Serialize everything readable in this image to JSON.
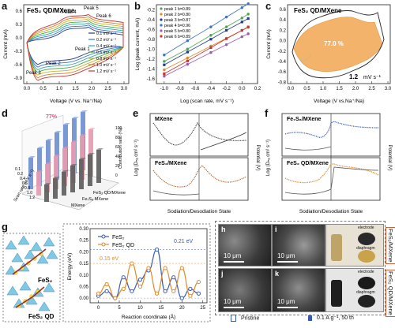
{
  "panels": {
    "a": {
      "label": "a",
      "title": "FeS₂ QD/MXene",
      "xlabel": "Voltage (V vs. Na⁺/Na)",
      "ylabel": "Current (mA)",
      "xticks": [
        "0.0",
        "0.5",
        "1.0",
        "1.5",
        "2.0",
        "2.5",
        "3.0"
      ],
      "yticks": [
        "0.6",
        "0.3",
        "0.0",
        "-0.3",
        "-0.6",
        "-0.9"
      ],
      "peaks": [
        "Peak 1",
        "Peak 2",
        "Peak 3",
        "Peak 4",
        "Peak 5",
        "Peak 6"
      ],
      "legend": [
        "0.1 mV s⁻¹",
        "0.2 mV s⁻¹",
        "0.4 mV s⁻¹",
        "0.6 mV s⁻¹",
        "0.8 mV s⁻¹",
        "1.0 mV s⁻¹",
        "1.2 mV s⁻¹"
      ],
      "colors": [
        "#1f3c8c",
        "#3a73c8",
        "#2aa7a7",
        "#4aa84a",
        "#c8b428",
        "#d27a28",
        "#c83232"
      ]
    },
    "b": {
      "label": "b",
      "xlabel": "Log (scan rate, mV s⁻¹)",
      "ylabel": "Log (peak current, mA)",
      "xticks": [
        "-1.0",
        "-0.8",
        "-0.6",
        "-0.4",
        "-0.2",
        "0.0",
        "0.2"
      ],
      "yticks": [
        "-0.2",
        "-0.4",
        "-0.6",
        "-0.8",
        "-1.0",
        "-1.2",
        "-1.4",
        "-1.6"
      ],
      "legend": [
        "peak 1 b=0.89",
        "peak 2 b=0.80",
        "peak 3 b=0.87",
        "peak 4 b=0.96",
        "peak 5 b=0.80",
        "peak 6 b=0.89"
      ]
    },
    "c": {
      "label": "c",
      "title": "FeS₂ QD/MXene",
      "percent": "77.0 %",
      "rate": "1.2",
      "rate_unit": "mV s⁻¹",
      "xlabel": "Voltage (V vs.Na⁺/Na)",
      "ylabel": "Current (mA)",
      "xticks": [
        "0.0",
        "0.5",
        "1.0",
        "1.5",
        "2.0",
        "2.5",
        "3.0"
      ],
      "yticks": [
        "0.6",
        "0.4",
        "0.2",
        "0.0",
        "-0.2",
        "-0.4",
        "-0.6",
        "-0.8"
      ]
    },
    "d": {
      "label": "d",
      "percent": "77%",
      "axis_z": "Contribution ratio (%)",
      "axis_x": "Scan rate (mV s⁻¹)",
      "rows": [
        "FeS₂ QD/MXene",
        "Fe₇S₈ MXene",
        "MXene"
      ],
      "zticks": [
        "100",
        "80",
        "60",
        "40",
        "20",
        "0"
      ],
      "xticks": [
        "0.1",
        "0.2",
        "0.4",
        "0.6",
        "0.8",
        "1.0",
        "1.2"
      ]
    },
    "e": {
      "label": "e",
      "top": "MXene",
      "bottom": "FeS₂/MXene",
      "xlabel": "Sodiation/Desodiation State",
      "ylabel": "Log (Dₙₐ cm² s⁻¹)",
      "y2label": "Potential (V)"
    },
    "f": {
      "label": "f",
      "top": "Fe₇S₈/MXene",
      "bottom": "FeS₂ QD/MXene",
      "xlabel": "Sodiation/Desodiation State",
      "ylabel": "Log (Dₙₐ cm² s⁻¹)",
      "y2label": "Potential (V)"
    },
    "g": {
      "label": "g",
      "struct_top": "FeS₂",
      "struct_bottom": "FeS₂ QD",
      "xlabel": "Reaction coordinate (Å)",
      "ylabel": "Energy (eV)",
      "xticks": [
        "0",
        "5",
        "10",
        "15",
        "20",
        "25"
      ],
      "yticks": [
        "0.30",
        "0.25",
        "0.20",
        "0.15",
        "0.10",
        "0.05",
        "0.00"
      ],
      "legend": [
        "FeS₂",
        "FeS₂ QD"
      ],
      "ann_high": "0.21 eV",
      "ann_low": "0.15 eV"
    },
    "sem": {
      "h": "h",
      "i": "i",
      "j": "j",
      "k": "k",
      "scale": "10 μm",
      "electrode": "electrode",
      "diaphragm": "diaphragm",
      "side_top": "FeS₂/MXene",
      "side_bottom": "FeS₂ QD/MXene",
      "pristine": "Pristine",
      "cycled": "0.1 A g⁻¹, 50 th"
    }
  },
  "chart_data": [
    {
      "type": "line",
      "panel": "b",
      "x": [
        -1.0,
        -0.7,
        -0.4,
        -0.2,
        0.0,
        0.08
      ],
      "series": [
        {
          "name": "peak 1 b=0.89",
          "values": [
            -1.25,
            -1.0,
            -0.72,
            -0.55,
            -0.37,
            -0.29
          ]
        },
        {
          "name": "peak 2 b=0.80",
          "values": [
            -1.42,
            -1.18,
            -0.94,
            -0.78,
            -0.62,
            -0.56
          ]
        },
        {
          "name": "peak 3 b=0.87",
          "values": [
            -1.32,
            -1.06,
            -0.8,
            -0.62,
            -0.45,
            -0.38
          ]
        },
        {
          "name": "peak 4 b=0.96",
          "values": [
            -1.12,
            -0.83,
            -0.55,
            -0.35,
            -0.16,
            -0.08
          ]
        },
        {
          "name": "peak 5 b=0.80",
          "values": [
            -1.55,
            -1.31,
            -1.07,
            -0.91,
            -0.75,
            -0.69
          ]
        },
        {
          "name": "peak 6 b=0.89",
          "values": [
            -1.5,
            -1.24,
            -0.97,
            -0.79,
            -0.62,
            -0.55
          ]
        }
      ],
      "xlim": [
        -1.1,
        0.2
      ],
      "ylim": [
        -1.7,
        -0.1
      ]
    },
    {
      "type": "line",
      "panel": "g",
      "x": [
        0,
        2,
        4,
        6,
        8,
        10,
        12,
        14,
        16,
        18,
        20,
        22,
        24
      ],
      "series": [
        {
          "name": "FeS₂",
          "values": [
            0.01,
            0.03,
            0.0,
            0.09,
            0.03,
            0.08,
            0.12,
            0.21,
            0.03,
            0.09,
            0.0,
            0.04,
            0.02
          ]
        },
        {
          "name": "FeS₂ QD",
          "values": [
            0.02,
            0.06,
            0.0,
            0.04,
            0.15,
            0.05,
            0.13,
            0.02,
            0.13,
            0.03,
            0.13,
            0.01,
            0.07
          ]
        }
      ],
      "xlim": [
        -2,
        26
      ],
      "ylim": [
        -0.02,
        0.3
      ]
    }
  ]
}
